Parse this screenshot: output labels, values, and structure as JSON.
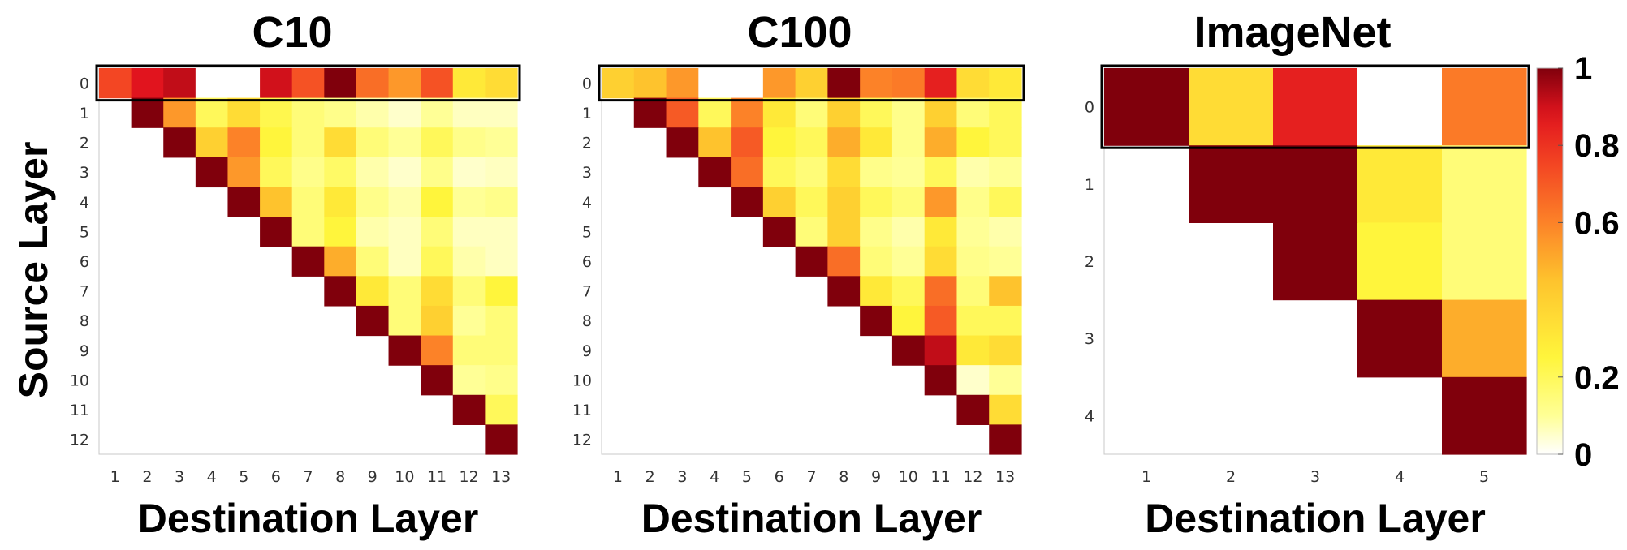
{
  "ylabel": "Source Layer",
  "chart_data": [
    {
      "type": "heatmap",
      "title": "C10",
      "xlabel": "Destination Layer",
      "x_ticks": [
        "1",
        "2",
        "3",
        "4",
        "5",
        "6",
        "7",
        "8",
        "9",
        "10",
        "11",
        "12",
        "13"
      ],
      "y_ticks": [
        "0",
        "1",
        "2",
        "3",
        "4",
        "5",
        "6",
        "7",
        "8",
        "9",
        "10",
        "11",
        "12"
      ],
      "highlighted_row": 0,
      "values": [
        [
          0.75,
          0.88,
          0.92,
          0.0,
          0.0,
          0.9,
          0.72,
          1.0,
          0.65,
          0.55,
          0.72,
          0.3,
          0.35
        ],
        [
          null,
          1.0,
          0.55,
          0.2,
          0.35,
          0.22,
          0.15,
          0.12,
          0.08,
          0.05,
          0.1,
          0.06,
          0.06
        ],
        [
          null,
          null,
          1.0,
          0.4,
          0.6,
          0.25,
          0.15,
          0.35,
          0.15,
          0.1,
          0.2,
          0.12,
          0.1
        ],
        [
          null,
          null,
          null,
          1.0,
          0.55,
          0.2,
          0.12,
          0.18,
          0.08,
          0.05,
          0.12,
          0.05,
          0.06
        ],
        [
          null,
          null,
          null,
          null,
          1.0,
          0.45,
          0.15,
          0.3,
          0.12,
          0.08,
          0.25,
          0.1,
          0.12
        ],
        [
          null,
          null,
          null,
          null,
          null,
          1.0,
          0.15,
          0.25,
          0.08,
          0.06,
          0.15,
          0.06,
          0.06
        ],
        [
          null,
          null,
          null,
          null,
          null,
          null,
          1.0,
          0.5,
          0.15,
          0.06,
          0.2,
          0.08,
          0.06
        ],
        [
          null,
          null,
          null,
          null,
          null,
          null,
          null,
          1.0,
          0.3,
          0.15,
          0.35,
          0.15,
          0.25
        ],
        [
          null,
          null,
          null,
          null,
          null,
          null,
          null,
          null,
          1.0,
          0.15,
          0.4,
          0.1,
          0.15
        ],
        [
          null,
          null,
          null,
          null,
          null,
          null,
          null,
          null,
          null,
          1.0,
          0.6,
          0.15,
          0.15
        ],
        [
          null,
          null,
          null,
          null,
          null,
          null,
          null,
          null,
          null,
          null,
          1.0,
          0.1,
          0.12
        ],
        [
          null,
          null,
          null,
          null,
          null,
          null,
          null,
          null,
          null,
          null,
          null,
          1.0,
          0.2
        ],
        [
          null,
          null,
          null,
          null,
          null,
          null,
          null,
          null,
          null,
          null,
          null,
          null,
          1.0
        ]
      ]
    },
    {
      "type": "heatmap",
      "title": "C100",
      "xlabel": "Destination Layer",
      "x_ticks": [
        "1",
        "2",
        "3",
        "4",
        "5",
        "6",
        "7",
        "8",
        "9",
        "10",
        "11",
        "12",
        "13"
      ],
      "y_ticks": [
        "0",
        "1",
        "2",
        "3",
        "4",
        "5",
        "6",
        "7",
        "8",
        "9",
        "10",
        "11",
        "12"
      ],
      "highlighted_row": 0,
      "values": [
        [
          0.4,
          0.45,
          0.55,
          0.0,
          0.0,
          0.55,
          0.4,
          1.0,
          0.6,
          0.62,
          0.85,
          0.35,
          0.3
        ],
        [
          null,
          1.0,
          0.7,
          0.2,
          0.6,
          0.3,
          0.15,
          0.4,
          0.2,
          0.12,
          0.4,
          0.15,
          0.2
        ],
        [
          null,
          null,
          1.0,
          0.45,
          0.7,
          0.25,
          0.2,
          0.5,
          0.3,
          0.12,
          0.5,
          0.25,
          0.2
        ],
        [
          null,
          null,
          null,
          1.0,
          0.65,
          0.2,
          0.15,
          0.35,
          0.12,
          0.1,
          0.2,
          0.08,
          0.1
        ],
        [
          null,
          null,
          null,
          null,
          1.0,
          0.4,
          0.2,
          0.4,
          0.2,
          0.15,
          0.55,
          0.12,
          0.2
        ],
        [
          null,
          null,
          null,
          null,
          null,
          1.0,
          0.15,
          0.4,
          0.12,
          0.08,
          0.3,
          0.1,
          0.08
        ],
        [
          null,
          null,
          null,
          null,
          null,
          null,
          1.0,
          0.65,
          0.15,
          0.1,
          0.35,
          0.12,
          0.1
        ],
        [
          null,
          null,
          null,
          null,
          null,
          null,
          null,
          1.0,
          0.3,
          0.2,
          0.65,
          0.15,
          0.45
        ],
        [
          null,
          null,
          null,
          null,
          null,
          null,
          null,
          null,
          1.0,
          0.25,
          0.7,
          0.2,
          0.2
        ],
        [
          null,
          null,
          null,
          null,
          null,
          null,
          null,
          null,
          null,
          1.0,
          0.92,
          0.3,
          0.35
        ],
        [
          null,
          null,
          null,
          null,
          null,
          null,
          null,
          null,
          null,
          null,
          1.0,
          0.05,
          0.1
        ],
        [
          null,
          null,
          null,
          null,
          null,
          null,
          null,
          null,
          null,
          null,
          null,
          1.0,
          0.35
        ],
        [
          null,
          null,
          null,
          null,
          null,
          null,
          null,
          null,
          null,
          null,
          null,
          null,
          1.0
        ]
      ]
    },
    {
      "type": "heatmap",
      "title": "ImageNet",
      "xlabel": "Destination Layer",
      "x_ticks": [
        "1",
        "2",
        "3",
        "4",
        "5"
      ],
      "y_ticks": [
        "0",
        "1",
        "2",
        "3",
        "4"
      ],
      "highlighted_row": 0,
      "values": [
        [
          1.0,
          0.35,
          0.85,
          0.0,
          0.62
        ],
        [
          null,
          1.0,
          1.0,
          0.3,
          0.15
        ],
        [
          null,
          null,
          1.0,
          0.25,
          0.15
        ],
        [
          null,
          null,
          null,
          1.0,
          0.5
        ],
        [
          null,
          null,
          null,
          null,
          1.0
        ]
      ]
    }
  ],
  "colorbar": {
    "colormap": "hot",
    "range": [
      0,
      1
    ],
    "ticks": [
      {
        "value": 1,
        "label": "1"
      },
      {
        "value": 0.8,
        "label": "0.8"
      },
      {
        "value": 0.6,
        "label": "0.6"
      },
      {
        "value": 0.2,
        "label": "0.2"
      },
      {
        "value": 0,
        "label": "0"
      }
    ]
  }
}
